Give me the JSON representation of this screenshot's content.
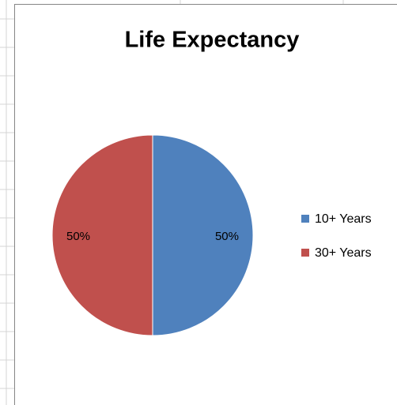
{
  "chart_data": {
    "type": "pie",
    "title": "Life Expectancy",
    "categories": [
      "10+ Years",
      "30+ Years"
    ],
    "values": [
      50,
      50
    ],
    "value_labels": [
      "50%",
      "50%"
    ],
    "colors": [
      "#4f81bd",
      "#c0504d"
    ],
    "legend": "right"
  }
}
